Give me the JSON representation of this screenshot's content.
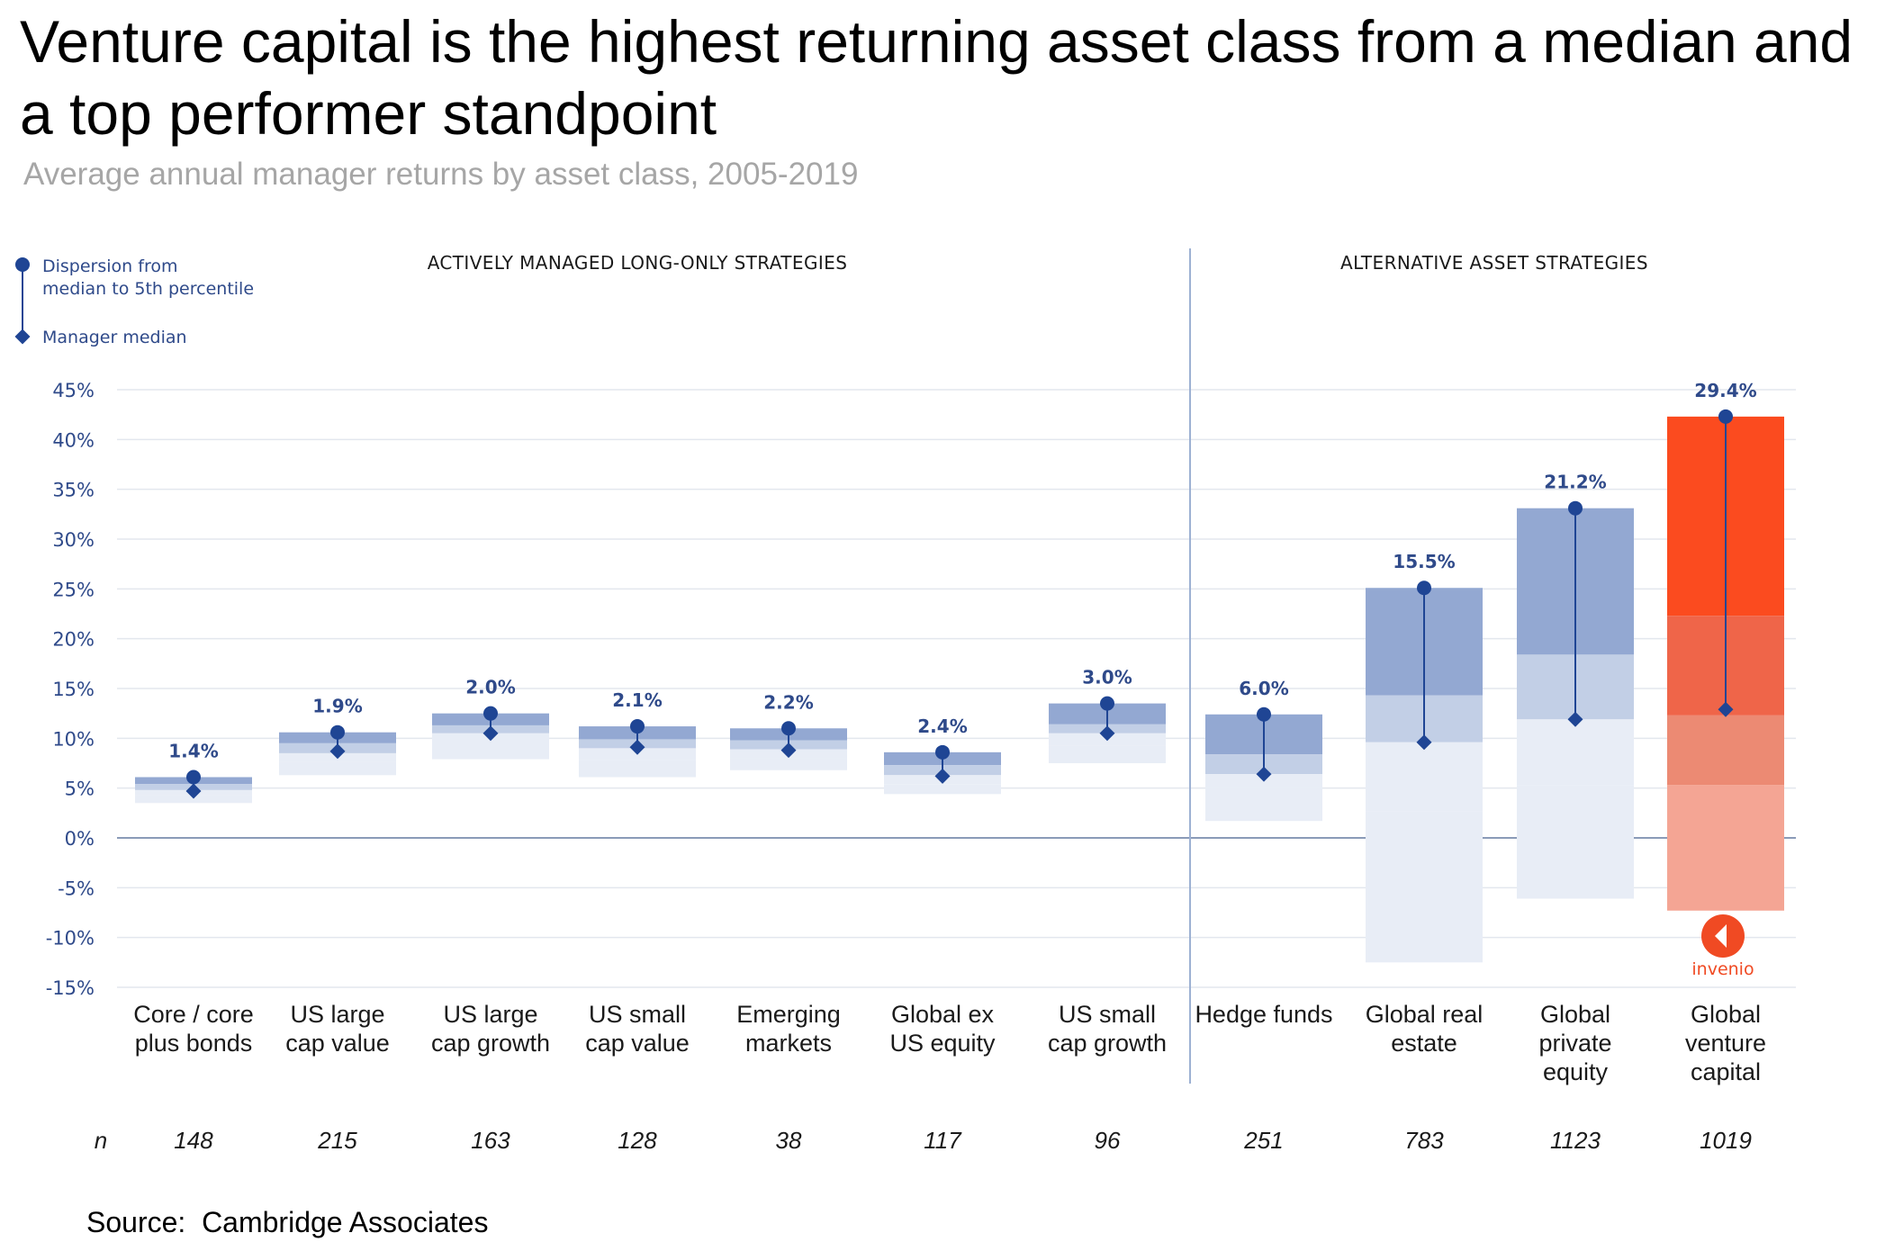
{
  "title": "Venture capital is the highest returning asset class from a median and a top performer standpoint",
  "subtitle": "Average annual manager returns by asset class, 2005-2019",
  "source": "Source:  Cambridge Associates",
  "legend": {
    "dispersion": [
      "Dispersion from",
      "median to 5th percentile"
    ],
    "median": "Manager median"
  },
  "sections": {
    "left": "ACTIVELY MANAGED LONG-ONLY STRATEGIES",
    "right": "ALTERNATIVE ASSET STRATEGIES"
  },
  "n_label": "n",
  "logo_text": "invenio",
  "colors": {
    "blue_dark": "#1f4594",
    "blue_band_1": "#93a8d2",
    "blue_band_2": "#c2cfe6",
    "blue_band_3": "#e8edf6",
    "orange_1": "#fb4b1f",
    "orange_2": "#ef6549",
    "orange_3": "#ec8a73",
    "orange_4": "#f4a594",
    "gridline": "#e3e7ee",
    "zero_line": "#8a9bb8"
  },
  "chart_data": {
    "type": "range",
    "y_unit": "%",
    "ylim": [
      -15,
      45
    ],
    "yticks": [
      "45%",
      "40%",
      "35%",
      "30%",
      "25%",
      "20%",
      "15%",
      "10%",
      "5%",
      "0%",
      "-5%",
      "-10%",
      "-15%"
    ],
    "ytick_values": [
      45,
      40,
      35,
      30,
      25,
      20,
      15,
      10,
      5,
      0,
      -5,
      -10,
      -15
    ],
    "grid": true,
    "categories": [
      {
        "name": [
          "Core / core",
          "plus bonds"
        ],
        "n": "148",
        "label": "1.4%",
        "median": 4.7,
        "p5": 6.1,
        "bands": [
          6.1,
          5.4,
          4.8,
          4.3,
          3.5
        ],
        "section": "left",
        "highlight": false
      },
      {
        "name": [
          "US large",
          "cap value"
        ],
        "n": "215",
        "label": "1.9%",
        "median": 8.7,
        "p5": 10.6,
        "bands": [
          10.6,
          9.5,
          8.5,
          7.6,
          6.3
        ],
        "section": "left",
        "highlight": false
      },
      {
        "name": [
          "US large",
          "cap growth"
        ],
        "n": "163",
        "label": "2.0%",
        "median": 10.5,
        "p5": 12.5,
        "bands": [
          12.5,
          11.3,
          10.5,
          9.4,
          7.9
        ],
        "section": "left",
        "highlight": false
      },
      {
        "name": [
          "US small",
          "cap value"
        ],
        "n": "128",
        "label": "2.1%",
        "median": 9.1,
        "p5": 11.2,
        "bands": [
          11.2,
          9.9,
          9.0,
          7.8,
          6.1
        ],
        "section": "left",
        "highlight": false
      },
      {
        "name": [
          "Emerging",
          "markets"
        ],
        "n": "38",
        "label": "2.2%",
        "median": 8.8,
        "p5": 11.0,
        "bands": [
          11.0,
          9.8,
          8.9,
          8.0,
          6.8
        ],
        "section": "left",
        "highlight": false
      },
      {
        "name": [
          "Global ex",
          "US equity"
        ],
        "n": "117",
        "label": "2.4%",
        "median": 6.2,
        "p5": 8.6,
        "bands": [
          8.6,
          7.3,
          6.3,
          5.4,
          4.4
        ],
        "section": "left",
        "highlight": false
      },
      {
        "name": [
          "US small",
          "cap growth"
        ],
        "n": "96",
        "label": "3.0%",
        "median": 10.5,
        "p5": 13.5,
        "bands": [
          13.5,
          11.4,
          10.5,
          9.3,
          7.5
        ],
        "section": "left",
        "highlight": false
      },
      {
        "name": [
          "Hedge funds"
        ],
        "n": "251",
        "label": "6.0%",
        "median": 6.4,
        "p5": 12.4,
        "bands": [
          12.4,
          8.4,
          6.4,
          5.1,
          1.7
        ],
        "section": "right",
        "highlight": false
      },
      {
        "name": [
          "Global real",
          "estate"
        ],
        "n": "783",
        "label": "15.5%",
        "median": 9.6,
        "p5": 25.1,
        "bands": [
          25.1,
          14.3,
          9.6,
          2.7,
          -12.5
        ],
        "section": "right",
        "highlight": false
      },
      {
        "name": [
          "Global",
          "private",
          "equity"
        ],
        "n": "1123",
        "label": "21.2%",
        "median": 11.9,
        "p5": 33.1,
        "bands": [
          33.1,
          18.4,
          11.9,
          5.3,
          -6.1
        ],
        "section": "right",
        "highlight": false
      },
      {
        "name": [
          "Global",
          "venture",
          "capital"
        ],
        "n": "1019",
        "label": "29.4%",
        "median": 12.9,
        "p5": 42.3,
        "bands": [
          42.3,
          22.3,
          12.3,
          5.3,
          -7.3
        ],
        "section": "right",
        "highlight": true
      }
    ]
  }
}
